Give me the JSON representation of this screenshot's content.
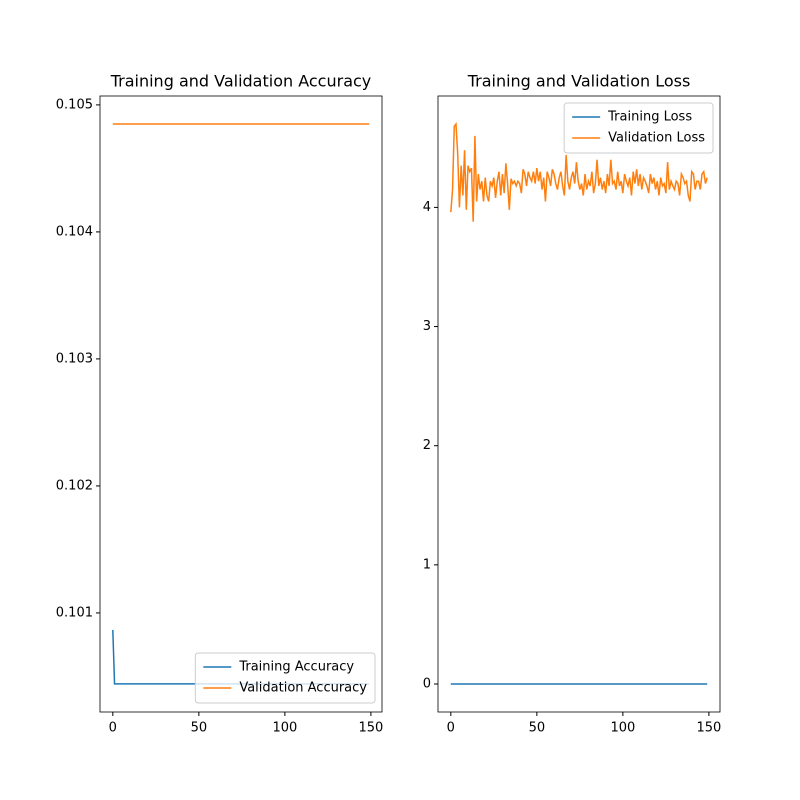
{
  "chart_data": [
    {
      "type": "line",
      "title": "Training and Validation Accuracy",
      "legend": "lower right",
      "x": [
        0,
        1,
        2,
        3,
        4,
        5,
        6,
        7,
        8,
        9,
        10,
        11,
        12,
        13,
        14,
        15,
        16,
        17,
        18,
        19,
        20,
        21,
        22,
        23,
        24,
        25,
        26,
        27,
        28,
        29,
        30,
        31,
        32,
        33,
        34,
        35,
        36,
        37,
        38,
        39,
        40,
        41,
        42,
        43,
        44,
        45,
        46,
        47,
        48,
        49,
        50,
        51,
        52,
        53,
        54,
        55,
        56,
        57,
        58,
        59,
        60,
        61,
        62,
        63,
        64,
        65,
        66,
        67,
        68,
        69,
        70,
        71,
        72,
        73,
        74,
        75,
        76,
        77,
        78,
        79,
        80,
        81,
        82,
        83,
        84,
        85,
        86,
        87,
        88,
        89,
        90,
        91,
        92,
        93,
        94,
        95,
        96,
        97,
        98,
        99,
        100,
        101,
        102,
        103,
        104,
        105,
        106,
        107,
        108,
        109,
        110,
        111,
        112,
        113,
        114,
        115,
        116,
        117,
        118,
        119,
        120,
        121,
        122,
        123,
        124,
        125,
        126,
        127,
        128,
        129,
        130,
        131,
        132,
        133,
        134,
        135,
        136,
        137,
        138,
        139,
        140,
        141,
        142,
        143,
        144,
        145,
        146,
        147,
        148,
        149
      ],
      "series": [
        {
          "name": "Training Accuracy",
          "color": "#1f77b4",
          "values": [
            0.100866,
            0.100441,
            0.100441,
            0.100441,
            0.100441,
            0.100441,
            0.100441,
            0.100441,
            0.100441,
            0.100441,
            0.100441,
            0.100441,
            0.100441,
            0.100441,
            0.100441,
            0.100441,
            0.100441,
            0.100441,
            0.100441,
            0.100441,
            0.100441,
            0.100441,
            0.100441,
            0.100441,
            0.100441,
            0.100441,
            0.100441,
            0.100441,
            0.100441,
            0.100441,
            0.100441,
            0.100441,
            0.100441,
            0.100441,
            0.100441,
            0.100441,
            0.100441,
            0.100441,
            0.100441,
            0.100441,
            0.100441,
            0.100441,
            0.100441,
            0.100441,
            0.100441,
            0.100441,
            0.100441,
            0.100441,
            0.100441,
            0.100441,
            0.100441,
            0.100441,
            0.100441,
            0.100441,
            0.100441,
            0.100441,
            0.100441,
            0.100441,
            0.100441,
            0.100441,
            0.100441,
            0.100441,
            0.100441,
            0.100441,
            0.100441,
            0.100441,
            0.100441,
            0.100441,
            0.100441,
            0.100441,
            0.100441,
            0.100441,
            0.100441,
            0.100441,
            0.100441,
            0.100441,
            0.100441,
            0.100441,
            0.100441,
            0.100441,
            0.100441,
            0.100441,
            0.100441,
            0.100441,
            0.100441,
            0.100441,
            0.100441,
            0.100441,
            0.100441,
            0.100441,
            0.100441,
            0.100441,
            0.100441,
            0.100441,
            0.100441,
            0.100441,
            0.100441,
            0.100441,
            0.100441,
            0.100441,
            0.100441,
            0.100441,
            0.100441,
            0.100441,
            0.100441,
            0.100441,
            0.100441,
            0.100441,
            0.100441,
            0.100441,
            0.100441,
            0.100441,
            0.100441,
            0.100441,
            0.100441,
            0.100441,
            0.100441,
            0.100441,
            0.100441,
            0.100441,
            0.100441,
            0.100441,
            0.100441,
            0.100441,
            0.100441,
            0.100441,
            0.100441,
            0.100441,
            0.100441,
            0.100441,
            0.100441,
            0.100441,
            0.100441,
            0.100441,
            0.100441,
            0.100441,
            0.100441,
            0.100441,
            0.100441,
            0.100441,
            0.100441,
            0.100441,
            0.100441,
            0.100441,
            0.100441,
            0.100441,
            0.100441,
            0.100441,
            0.100441,
            0.100441
          ]
        },
        {
          "name": "Validation Accuracy",
          "color": "#ff7f0e",
          "values": [
            0.10485,
            0.10485,
            0.10485,
            0.10485,
            0.10485,
            0.10485,
            0.10485,
            0.10485,
            0.10485,
            0.10485,
            0.10485,
            0.10485,
            0.10485,
            0.10485,
            0.10485,
            0.10485,
            0.10485,
            0.10485,
            0.10485,
            0.10485,
            0.10485,
            0.10485,
            0.10485,
            0.10485,
            0.10485,
            0.10485,
            0.10485,
            0.10485,
            0.10485,
            0.10485,
            0.10485,
            0.10485,
            0.10485,
            0.10485,
            0.10485,
            0.10485,
            0.10485,
            0.10485,
            0.10485,
            0.10485,
            0.10485,
            0.10485,
            0.10485,
            0.10485,
            0.10485,
            0.10485,
            0.10485,
            0.10485,
            0.10485,
            0.10485,
            0.10485,
            0.10485,
            0.10485,
            0.10485,
            0.10485,
            0.10485,
            0.10485,
            0.10485,
            0.10485,
            0.10485,
            0.10485,
            0.10485,
            0.10485,
            0.10485,
            0.10485,
            0.10485,
            0.10485,
            0.10485,
            0.10485,
            0.10485,
            0.10485,
            0.10485,
            0.10485,
            0.10485,
            0.10485,
            0.10485,
            0.10485,
            0.10485,
            0.10485,
            0.10485,
            0.10485,
            0.10485,
            0.10485,
            0.10485,
            0.10485,
            0.10485,
            0.10485,
            0.10485,
            0.10485,
            0.10485,
            0.10485,
            0.10485,
            0.10485,
            0.10485,
            0.10485,
            0.10485,
            0.10485,
            0.10485,
            0.10485,
            0.10485,
            0.10485,
            0.10485,
            0.10485,
            0.10485,
            0.10485,
            0.10485,
            0.10485,
            0.10485,
            0.10485,
            0.10485,
            0.10485,
            0.10485,
            0.10485,
            0.10485,
            0.10485,
            0.10485,
            0.10485,
            0.10485,
            0.10485,
            0.10485,
            0.10485,
            0.10485,
            0.10485,
            0.10485,
            0.10485,
            0.10485,
            0.10485,
            0.10485,
            0.10485,
            0.10485,
            0.10485,
            0.10485,
            0.10485,
            0.10485,
            0.10485,
            0.10485,
            0.10485,
            0.10485,
            0.10485,
            0.10485,
            0.10485,
            0.10485,
            0.10485,
            0.10485,
            0.10485,
            0.10485,
            0.10485,
            0.10485,
            0.10485,
            0.10485
          ]
        }
      ],
      "xlim": [
        -7.45,
        156.45
      ],
      "xticks": [
        0,
        50,
        100,
        150
      ],
      "ylim": [
        0.10022,
        0.10507
      ],
      "yticks": [
        0.101,
        0.102,
        0.103,
        0.104,
        0.105
      ]
    },
    {
      "type": "line",
      "title": "Training and Validation Loss",
      "legend": "upper right",
      "x": [
        0,
        1,
        2,
        3,
        4,
        5,
        6,
        7,
        8,
        9,
        10,
        11,
        12,
        13,
        14,
        15,
        16,
        17,
        18,
        19,
        20,
        21,
        22,
        23,
        24,
        25,
        26,
        27,
        28,
        29,
        30,
        31,
        32,
        33,
        34,
        35,
        36,
        37,
        38,
        39,
        40,
        41,
        42,
        43,
        44,
        45,
        46,
        47,
        48,
        49,
        50,
        51,
        52,
        53,
        54,
        55,
        56,
        57,
        58,
        59,
        60,
        61,
        62,
        63,
        64,
        65,
        66,
        67,
        68,
        69,
        70,
        71,
        72,
        73,
        74,
        75,
        76,
        77,
        78,
        79,
        80,
        81,
        82,
        83,
        84,
        85,
        86,
        87,
        88,
        89,
        90,
        91,
        92,
        93,
        94,
        95,
        96,
        97,
        98,
        99,
        100,
        101,
        102,
        103,
        104,
        105,
        106,
        107,
        108,
        109,
        110,
        111,
        112,
        113,
        114,
        115,
        116,
        117,
        118,
        119,
        120,
        121,
        122,
        123,
        124,
        125,
        126,
        127,
        128,
        129,
        130,
        131,
        132,
        133,
        134,
        135,
        136,
        137,
        138,
        139,
        140,
        141,
        142,
        143,
        144,
        145,
        146,
        147,
        148,
        149
      ],
      "series": [
        {
          "name": "Training Loss",
          "color": "#1f77b4",
          "values": [
            0,
            0,
            0,
            0,
            0,
            0,
            0,
            0,
            0,
            0,
            0,
            0,
            0,
            0,
            0,
            0,
            0,
            0,
            0,
            0,
            0,
            0,
            0,
            0,
            0,
            0,
            0,
            0,
            0,
            0,
            0,
            0,
            0,
            0,
            0,
            0,
            0,
            0,
            0,
            0,
            0,
            0,
            0,
            0,
            0,
            0,
            0,
            0,
            0,
            0,
            0,
            0,
            0,
            0,
            0,
            0,
            0,
            0,
            0,
            0,
            0,
            0,
            0,
            0,
            0,
            0,
            0,
            0,
            0,
            0,
            0,
            0,
            0,
            0,
            0,
            0,
            0,
            0,
            0,
            0,
            0,
            0,
            0,
            0,
            0,
            0,
            0,
            0,
            0,
            0,
            0,
            0,
            0,
            0,
            0,
            0,
            0,
            0,
            0,
            0,
            0,
            0,
            0,
            0,
            0,
            0,
            0,
            0,
            0,
            0,
            0,
            0,
            0,
            0,
            0,
            0,
            0,
            0,
            0,
            0,
            0,
            0,
            0,
            0,
            0,
            0,
            0,
            0,
            0,
            0,
            0,
            0,
            0,
            0,
            0,
            0,
            0,
            0,
            0,
            0,
            0,
            0,
            0,
            0,
            0,
            0,
            0,
            0,
            0,
            0
          ]
        },
        {
          "name": "Validation Loss",
          "color": "#ff7f0e",
          "values": [
            3.96,
            4.15,
            4.68,
            4.7,
            4.45,
            4.0,
            4.35,
            4.1,
            4.48,
            3.98,
            4.35,
            4.3,
            4.33,
            3.88,
            4.6,
            4.05,
            4.28,
            4.15,
            4.22,
            4.05,
            4.25,
            4.1,
            4.05,
            4.22,
            4.18,
            4.25,
            4.08,
            4.22,
            4.3,
            4.1,
            4.28,
            4.12,
            4.37,
            4.2,
            3.98,
            4.24,
            4.2,
            4.22,
            4.18,
            4.22,
            4.2,
            4.12,
            4.32,
            4.28,
            4.18,
            4.3,
            4.25,
            4.22,
            4.3,
            4.2,
            4.33,
            4.22,
            4.3,
            4.15,
            4.25,
            4.05,
            4.3,
            4.25,
            4.18,
            4.32,
            4.28,
            4.2,
            4.15,
            4.25,
            4.3,
            4.18,
            4.1,
            4.44,
            4.22,
            4.15,
            4.25,
            4.3,
            4.2,
            4.38,
            4.22,
            4.15,
            4.2,
            4.1,
            4.28,
            4.15,
            4.22,
            4.18,
            4.3,
            4.12,
            4.2,
            4.4,
            4.18,
            4.25,
            4.15,
            4.22,
            4.12,
            4.28,
            4.18,
            4.4,
            4.2,
            4.22,
            4.15,
            4.3,
            4.18,
            4.22,
            4.12,
            4.28,
            4.22,
            4.18,
            4.25,
            4.1,
            4.3,
            4.2,
            4.32,
            4.18,
            4.28,
            4.15,
            4.25,
            4.22,
            4.18,
            4.12,
            4.28,
            4.2,
            4.25,
            4.15,
            4.22,
            4.1,
            4.25,
            4.18,
            4.2,
            4.12,
            4.38,
            4.15,
            4.22,
            4.18,
            4.15,
            4.22,
            4.2,
            4.1,
            4.28,
            4.25,
            4.2,
            4.22,
            4.1,
            4.05,
            4.3,
            4.28,
            4.15,
            4.22,
            4.22,
            4.15,
            4.28,
            4.3,
            4.2,
            4.25
          ]
        }
      ],
      "xlim": [
        -7.45,
        156.45
      ],
      "xticks": [
        0,
        50,
        100,
        150
      ],
      "ylim": [
        -0.235,
        4.935
      ],
      "yticks": [
        0,
        1,
        2,
        3,
        4
      ]
    }
  ]
}
